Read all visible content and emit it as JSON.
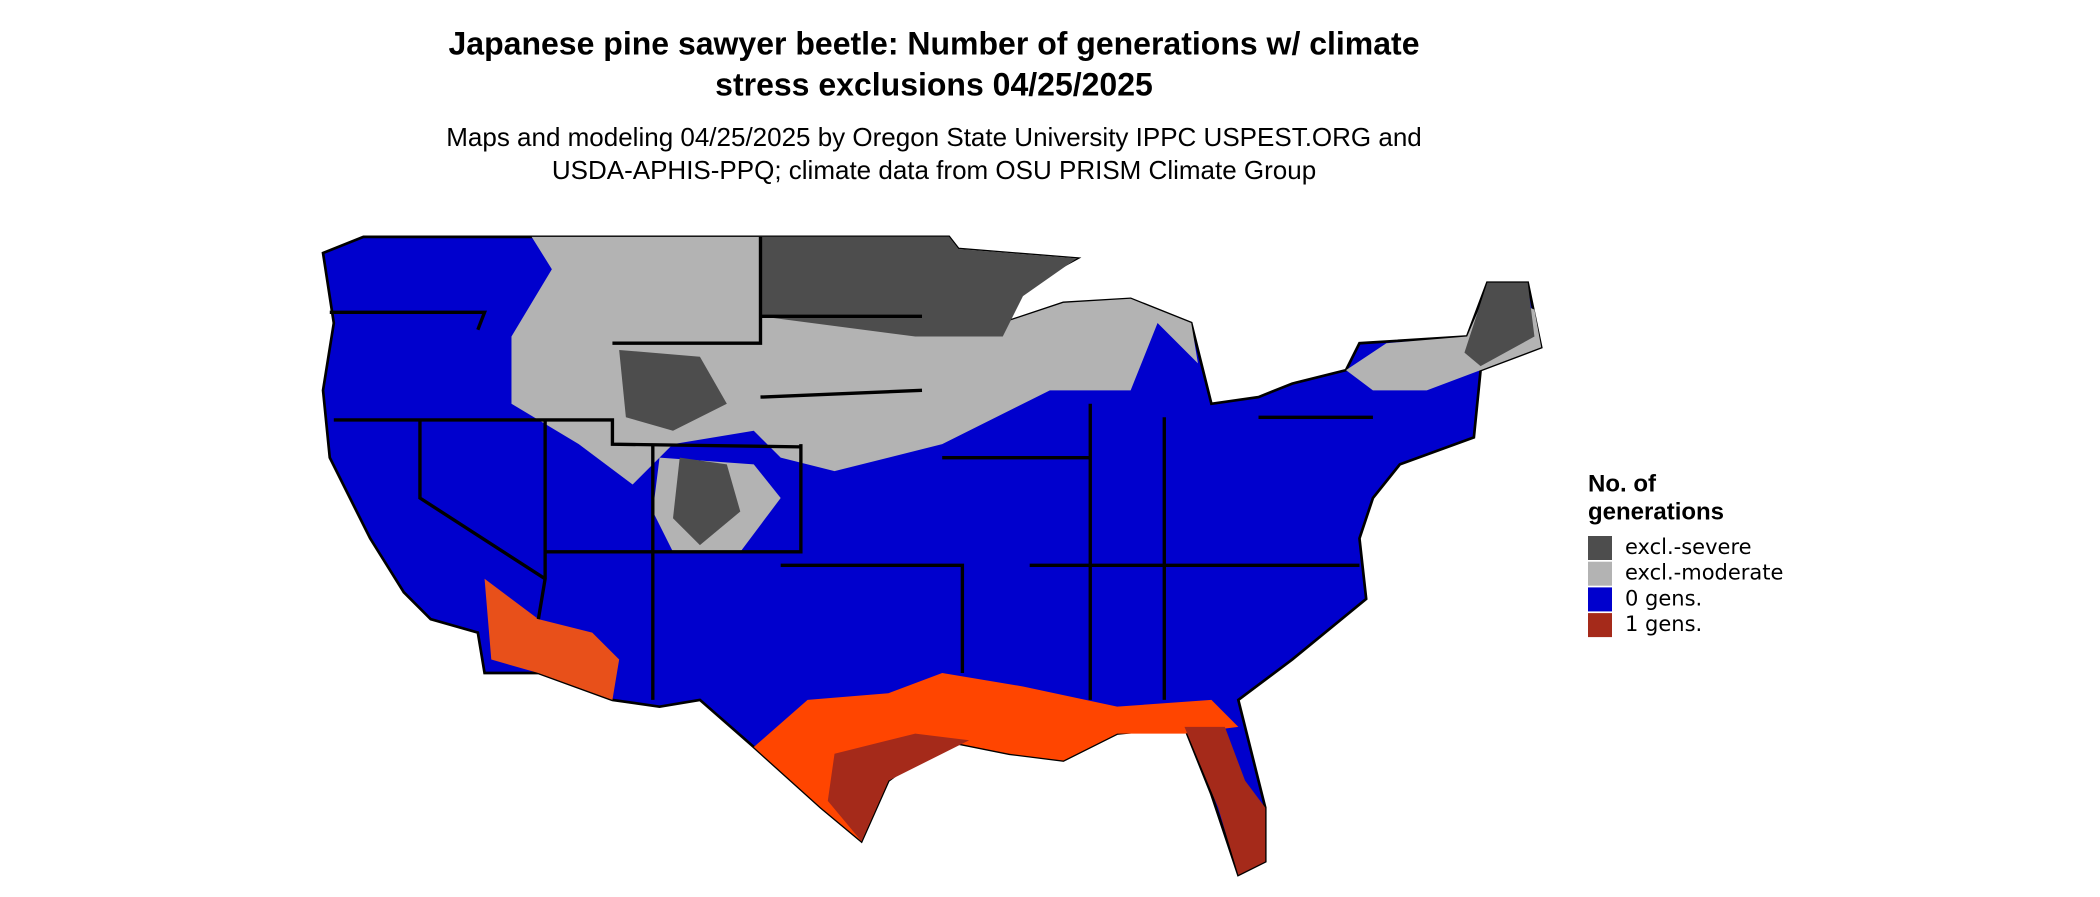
{
  "title": [
    "Japanese pine sawyer beetle: Number of generations w/ climate",
    "stress exclusions 04/25/2025"
  ],
  "subtitle": [
    "Maps and modeling 04/25/2025 by Oregon State University IPPC USPEST.ORG and",
    "USDA-APHIS-PPQ; climate data from OSU PRISM Climate Group"
  ],
  "legend": {
    "title": [
      "No. of",
      "generations"
    ],
    "items": [
      {
        "label": "excl.-severe",
        "color": "#4d4d4d"
      },
      {
        "label": "excl.-moderate",
        "color": "#b3b3b3"
      },
      {
        "label": "0 gens.",
        "color": "#0000cd"
      },
      {
        "label": "1 gens.",
        "color": "#a52a1a"
      }
    ]
  }
}
